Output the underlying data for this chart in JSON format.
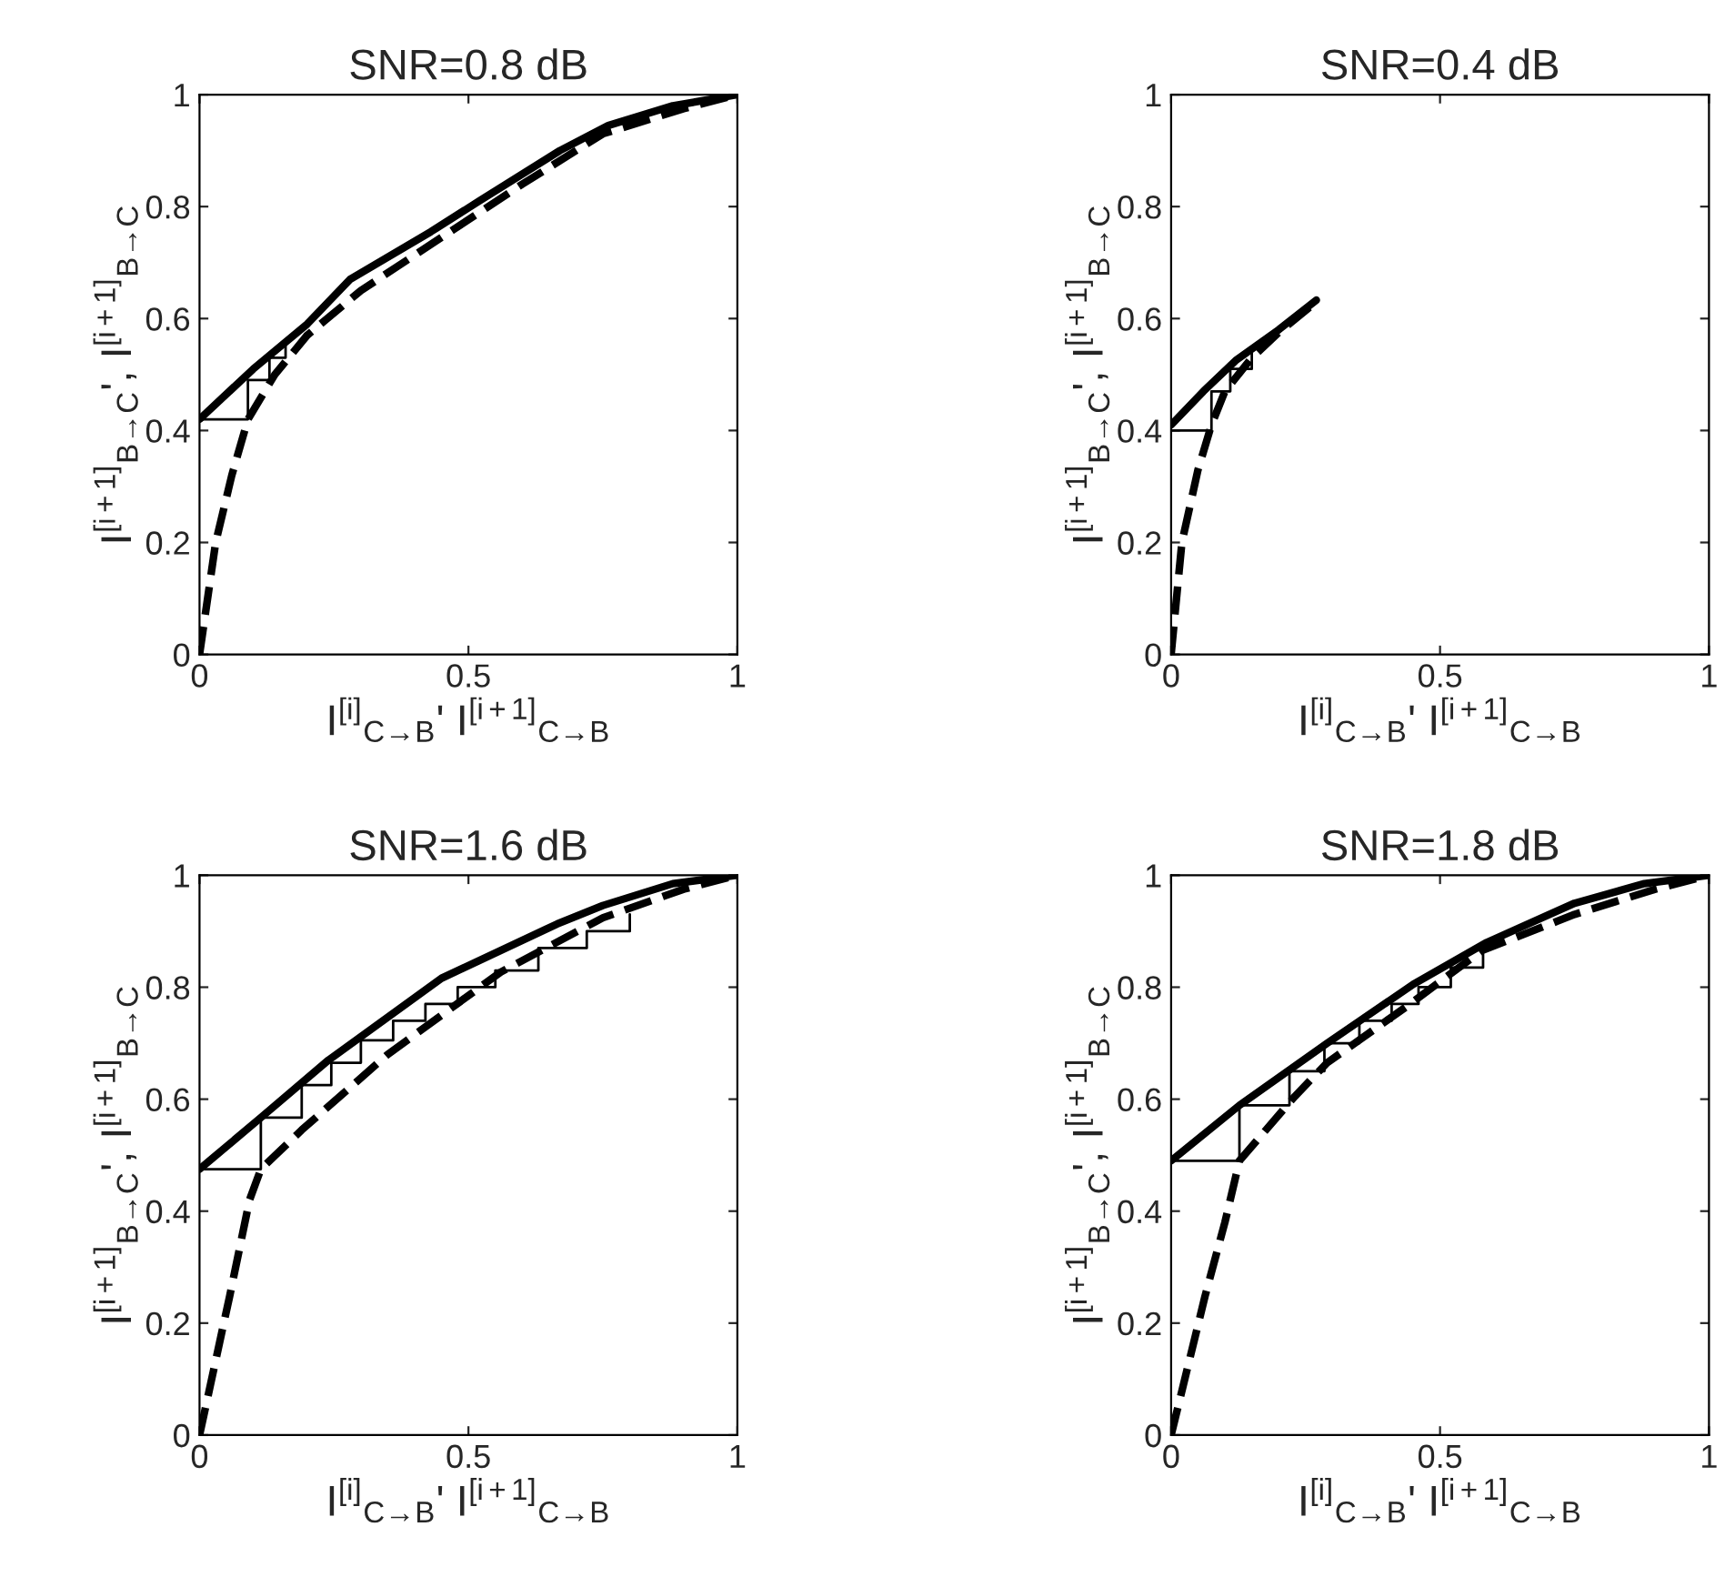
{
  "chart_data": [
    {
      "type": "line",
      "title": "SNR=0.8 dB",
      "xlabel": "I$^{[i]}$$_{C→B}$' I$^{[i+1]}$$_{C→B}$",
      "ylabel": "I$^{[i+1]}$$_{B→C}$', I$^{[i+1]}$$_{B→C}$",
      "xlim": [
        0,
        1
      ],
      "ylim": [
        0,
        1
      ],
      "xticks": [
        0,
        0.5,
        1
      ],
      "yticks": [
        0,
        0.2,
        0.4,
        0.6,
        0.8,
        1
      ],
      "series": [
        {
          "color": "#000000",
          "line_style": "solid",
          "x": [
            0,
            0.1,
            0.2,
            0.28,
            0.43,
            0.52,
            0.67,
            0.76,
            0.88,
            1
          ],
          "values": [
            0.42,
            0.51,
            0.59,
            0.67,
            0.755,
            0.81,
            0.9,
            0.945,
            0.98,
            1
          ]
        },
        {
          "color": "#000000",
          "line_style": "dashed",
          "x": [
            0,
            0.03,
            0.06,
            0.09,
            0.14,
            0.2,
            0.3,
            0.45,
            0.6,
            0.75,
            0.9,
            1
          ],
          "values": [
            0,
            0.2,
            0.32,
            0.42,
            0.5,
            0.57,
            0.65,
            0.745,
            0.84,
            0.93,
            0.975,
            1
          ]
        },
        {
          "color": "#000000",
          "line_style": "solid",
          "x": [
            0,
            0.09,
            0.09,
            0.13,
            0.13,
            0.16,
            0.16
          ],
          "values": [
            0.42,
            0.42,
            0.49,
            0.49,
            0.53,
            0.53,
            0.56
          ]
        }
      ]
    },
    {
      "type": "line",
      "title": "SNR=0.4 dB",
      "xlabel": "I$^{[i]}$$_{C→B}$' I$^{[i+1]}$$_{C→B}$",
      "ylabel": "I$^{[i+1]}$$_{B→C}$', I$^{[i+1]}$$_{B→C}$",
      "xlim": [
        0,
        1
      ],
      "ylim": [
        0,
        1
      ],
      "xticks": [
        0,
        0.5,
        1
      ],
      "yticks": [
        0,
        0.2,
        0.4,
        0.6,
        0.8,
        1
      ],
      "series": [
        {
          "color": "#000000",
          "line_style": "solid",
          "x": [
            0,
            0.06,
            0.12,
            0.2,
            0.27
          ],
          "values": [
            0.41,
            0.47,
            0.525,
            0.58,
            0.633
          ]
        },
        {
          "color": "#000000",
          "line_style": "dashed",
          "x": [
            0,
            0.02,
            0.05,
            0.075,
            0.1,
            0.15,
            0.2,
            0.27
          ],
          "values": [
            0,
            0.2,
            0.33,
            0.41,
            0.47,
            0.53,
            0.575,
            0.63
          ]
        },
        {
          "color": "#000000",
          "line_style": "solid",
          "x": [
            0,
            0.075,
            0.075,
            0.11,
            0.11,
            0.15,
            0.15
          ],
          "values": [
            0.4,
            0.4,
            0.47,
            0.47,
            0.51,
            0.51,
            0.54
          ]
        }
      ]
    },
    {
      "type": "line",
      "title": "SNR=1.6 dB",
      "xlabel": "I$^{[i]}$$_{C→B}$' I$^{[i+1]}$$_{C→B}$",
      "ylabel": "I$^{[i+1]}$$_{B→C}$', I$^{[i+1]}$$_{B→C}$",
      "xlim": [
        0,
        1
      ],
      "ylim": [
        0,
        1
      ],
      "xticks": [
        0,
        0.5,
        1
      ],
      "yticks": [
        0,
        0.2,
        0.4,
        0.6,
        0.8,
        1
      ],
      "series": [
        {
          "color": "#000000",
          "line_style": "solid",
          "x": [
            0,
            0.114,
            0.24,
            0.45,
            0.665,
            0.75,
            0.88,
            1
          ],
          "values": [
            0.475,
            0.567,
            0.67,
            0.816,
            0.913,
            0.946,
            0.985,
            1
          ]
        },
        {
          "color": "#000000",
          "line_style": "dashed",
          "x": [
            0,
            0.056,
            0.093,
            0.114,
            0.19,
            0.35,
            0.56,
            0.75,
            0.9,
            1
          ],
          "values": [
            0,
            0.248,
            0.42,
            0.475,
            0.545,
            0.68,
            0.827,
            0.924,
            0.975,
            1
          ]
        },
        {
          "color": "#000000",
          "line_style": "solid",
          "x": [
            0,
            0.114,
            0.114,
            0.19,
            0.19,
            0.245,
            0.245,
            0.3,
            0.3,
            0.36,
            0.36,
            0.42,
            0.42,
            0.48,
            0.48,
            0.55,
            0.55,
            0.63,
            0.63,
            0.72,
            0.72,
            0.8,
            0.8
          ],
          "values": [
            0.475,
            0.475,
            0.567,
            0.567,
            0.625,
            0.625,
            0.665,
            0.665,
            0.705,
            0.705,
            0.74,
            0.74,
            0.77,
            0.77,
            0.8,
            0.8,
            0.83,
            0.83,
            0.87,
            0.87,
            0.9,
            0.9,
            0.93
          ]
        }
      ]
    },
    {
      "type": "line",
      "title": "SNR=1.8 dB",
      "xlabel": "I$^{[i]}$$_{C→B}$' I$^{[i+1]}$$_{C→B}$",
      "ylabel": "I$^{[i+1]}$$_{B→C}$', I$^{[i+1]}$$_{B→C}$",
      "xlim": [
        0,
        1
      ],
      "ylim": [
        0,
        1
      ],
      "xticks": [
        0,
        0.5,
        1
      ],
      "yticks": [
        0,
        0.2,
        0.4,
        0.6,
        0.8,
        1
      ],
      "series": [
        {
          "color": "#000000",
          "line_style": "solid",
          "x": [
            0,
            0.127,
            0.29,
            0.45,
            0.587,
            0.75,
            0.88,
            1
          ],
          "values": [
            0.49,
            0.589,
            0.7,
            0.805,
            0.88,
            0.95,
            0.985,
            1
          ]
        },
        {
          "color": "#000000",
          "line_style": "dashed",
          "x": [
            0,
            0.063,
            0.1,
            0.127,
            0.23,
            0.29,
            0.44,
            0.577,
            0.75,
            0.9,
            1
          ],
          "values": [
            0,
            0.248,
            0.38,
            0.49,
            0.605,
            0.665,
            0.767,
            0.865,
            0.93,
            0.975,
            1
          ]
        },
        {
          "color": "#000000",
          "line_style": "solid",
          "x": [
            0,
            0.127,
            0.127,
            0.22,
            0.22,
            0.285,
            0.285,
            0.35,
            0.35,
            0.41,
            0.41,
            0.46,
            0.46,
            0.52,
            0.52,
            0.58,
            0.58
          ],
          "values": [
            0.49,
            0.49,
            0.589,
            0.589,
            0.65,
            0.65,
            0.7,
            0.7,
            0.74,
            0.74,
            0.77,
            0.77,
            0.8,
            0.8,
            0.835,
            0.835,
            0.86
          ]
        }
      ]
    }
  ]
}
